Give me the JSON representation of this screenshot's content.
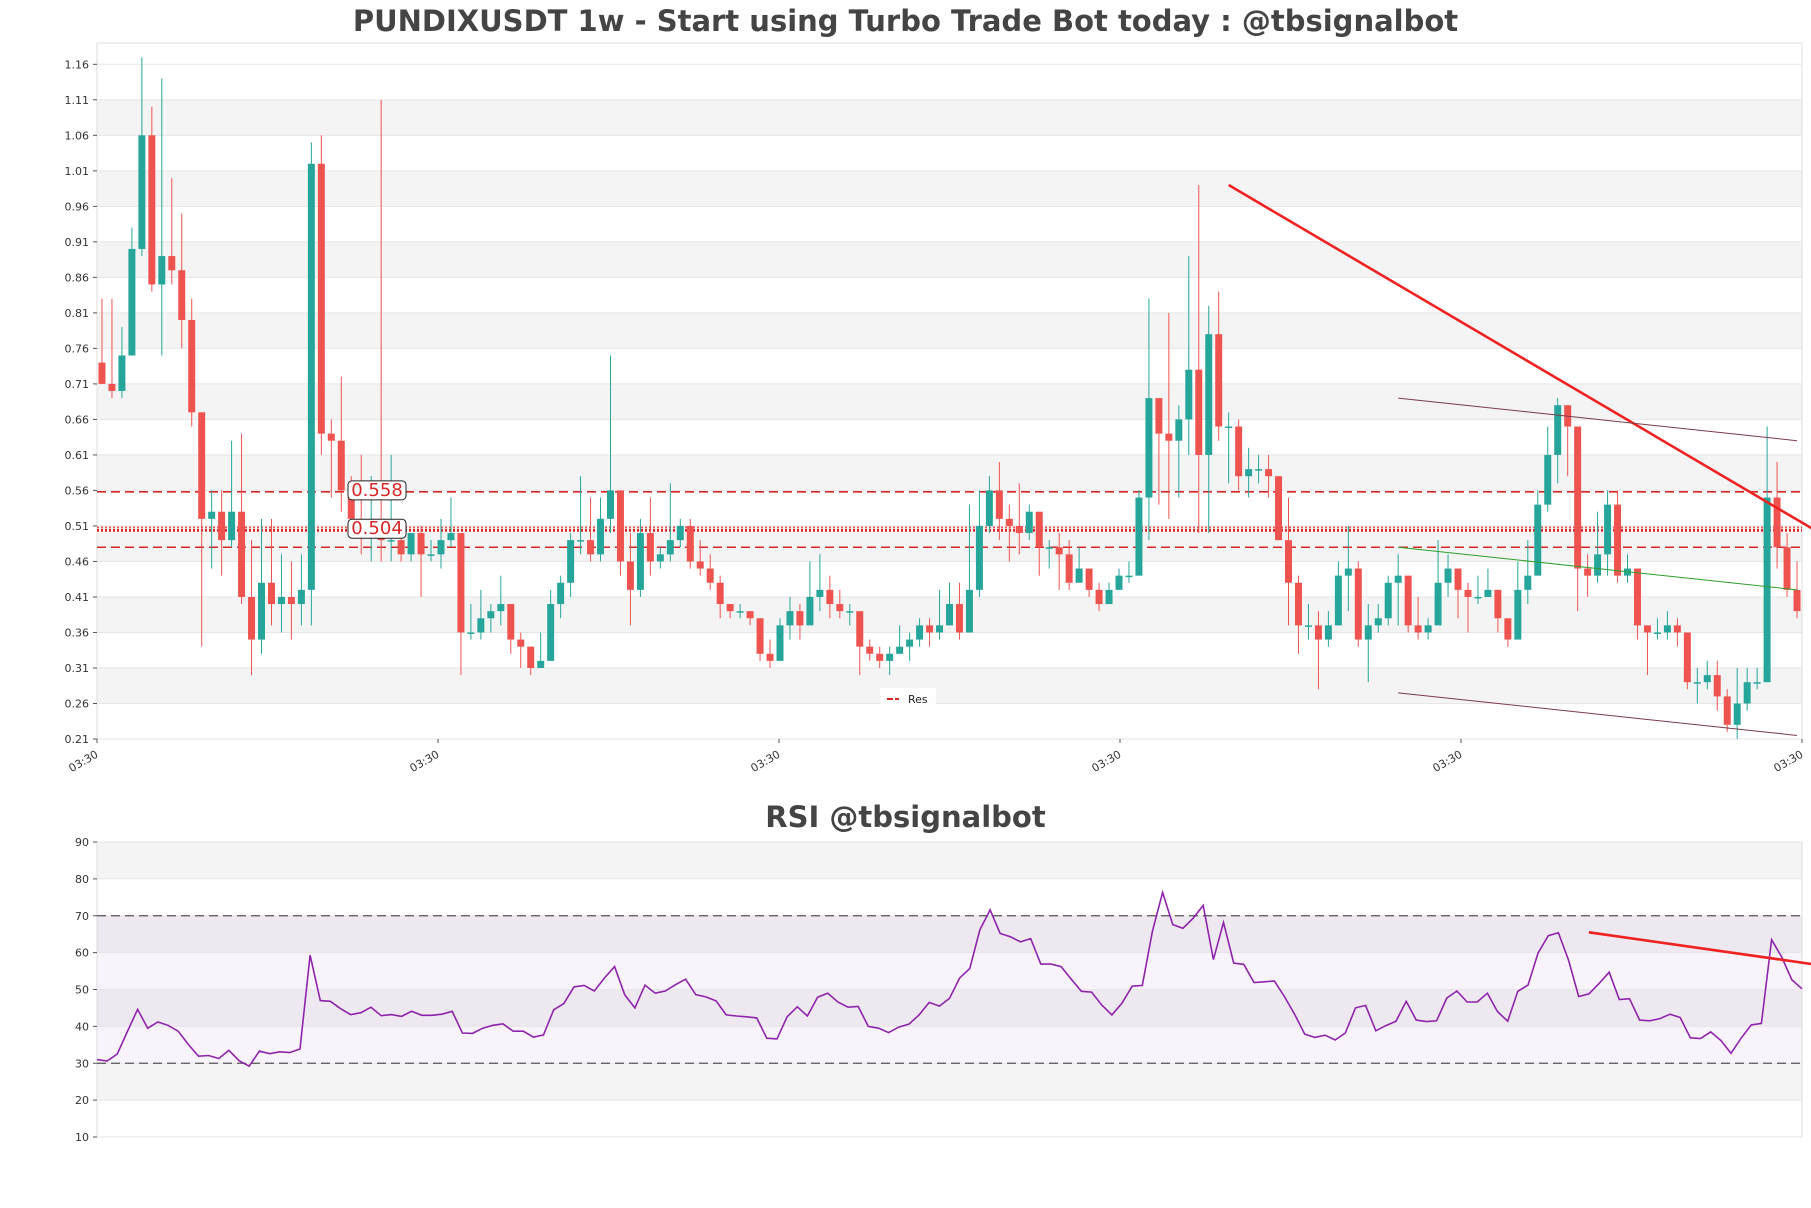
{
  "chart_data": [
    {
      "type": "candlestick",
      "title": "PUNDIXUSDT 1w - Start using Turbo Trade Bot today : @tbsignalbot",
      "ylim": [
        0.21,
        1.19
      ],
      "yticks": [
        0.21,
        0.26,
        0.31,
        0.36,
        0.41,
        0.46,
        0.51,
        0.56,
        0.61,
        0.66,
        0.71,
        0.76,
        0.81,
        0.86,
        0.91,
        0.96,
        1.01,
        1.06,
        1.11,
        1.16
      ],
      "xtick_labels": [
        "03:30",
        "03:30",
        "03:30",
        "03:30",
        "03:30",
        "03:30"
      ],
      "grid": "alternating horizontal bands",
      "legend": {
        "placement": "bottom-center",
        "entries": [
          "Res"
        ]
      },
      "colors": {
        "up": "#26a69a",
        "down": "#ef5350",
        "res": "#d62728",
        "trend": "#ee2222",
        "channel": "#7b3b4b",
        "mid": "#2ca02c"
      },
      "levels": [
        {
          "value": 0.558,
          "label": "0.558",
          "style": "dashed"
        },
        {
          "value": 0.504,
          "label": "0.504",
          "style": "dotted"
        },
        {
          "value": 0.48,
          "label": "",
          "style": "dashed"
        }
      ],
      "trendlines": [
        {
          "name": "down-trend",
          "from": [
            113,
            0.99
          ],
          "to": [
            173,
            0.494
          ]
        },
        {
          "name": "channel-upper",
          "from": [
            130,
            0.69
          ],
          "to": [
            170,
            0.63
          ]
        },
        {
          "name": "channel-middle",
          "from": [
            130,
            0.48
          ],
          "to": [
            170,
            0.42
          ]
        },
        {
          "name": "channel-lower",
          "from": [
            130,
            0.275
          ],
          "to": [
            170,
            0.215
          ]
        }
      ],
      "candles": [
        [
          0.74,
          0.71,
          0.83,
          0.71
        ],
        [
          0.71,
          0.7,
          0.83,
          0.69
        ],
        [
          0.7,
          0.75,
          0.79,
          0.69
        ],
        [
          0.75,
          0.9,
          0.93,
          0.75
        ],
        [
          0.9,
          1.06,
          1.17,
          0.89
        ],
        [
          1.06,
          0.85,
          1.1,
          0.84
        ],
        [
          0.85,
          0.89,
          1.14,
          0.75
        ],
        [
          0.89,
          0.87,
          1.0,
          0.85
        ],
        [
          0.87,
          0.8,
          0.95,
          0.76
        ],
        [
          0.8,
          0.67,
          0.83,
          0.65
        ],
        [
          0.67,
          0.52,
          0.67,
          0.34
        ],
        [
          0.52,
          0.53,
          0.56,
          0.45
        ],
        [
          0.53,
          0.49,
          0.56,
          0.44
        ],
        [
          0.49,
          0.53,
          0.63,
          0.48
        ],
        [
          0.53,
          0.41,
          0.64,
          0.4
        ],
        [
          0.41,
          0.35,
          0.49,
          0.3
        ],
        [
          0.35,
          0.43,
          0.52,
          0.33
        ],
        [
          0.43,
          0.4,
          0.52,
          0.37
        ],
        [
          0.4,
          0.41,
          0.47,
          0.36
        ],
        [
          0.41,
          0.4,
          0.46,
          0.35
        ],
        [
          0.4,
          0.42,
          0.47,
          0.37
        ],
        [
          0.42,
          1.02,
          1.05,
          0.37
        ],
        [
          1.02,
          0.64,
          1.06,
          0.61
        ],
        [
          0.64,
          0.63,
          0.66,
          0.55
        ],
        [
          0.63,
          0.56,
          0.72,
          0.53
        ],
        [
          0.56,
          0.52,
          0.58,
          0.5
        ],
        [
          0.52,
          0.51,
          0.61,
          0.47
        ],
        [
          0.51,
          0.52,
          0.58,
          0.46
        ],
        [
          0.52,
          0.49,
          1.11,
          0.46
        ],
        [
          0.49,
          0.49,
          0.61,
          0.46
        ],
        [
          0.49,
          0.47,
          0.5,
          0.46
        ],
        [
          0.47,
          0.5,
          0.5,
          0.46
        ],
        [
          0.5,
          0.47,
          0.51,
          0.41
        ],
        [
          0.47,
          0.47,
          0.49,
          0.46
        ],
        [
          0.47,
          0.49,
          0.52,
          0.45
        ],
        [
          0.49,
          0.5,
          0.55,
          0.48
        ],
        [
          0.5,
          0.36,
          0.5,
          0.3
        ],
        [
          0.36,
          0.36,
          0.4,
          0.35
        ],
        [
          0.36,
          0.38,
          0.42,
          0.35
        ],
        [
          0.38,
          0.39,
          0.4,
          0.36
        ],
        [
          0.39,
          0.4,
          0.44,
          0.37
        ],
        [
          0.4,
          0.35,
          0.4,
          0.33
        ],
        [
          0.35,
          0.34,
          0.36,
          0.31
        ],
        [
          0.34,
          0.31,
          0.34,
          0.3
        ],
        [
          0.31,
          0.32,
          0.36,
          0.31
        ],
        [
          0.32,
          0.4,
          0.42,
          0.33
        ],
        [
          0.4,
          0.43,
          0.44,
          0.38
        ],
        [
          0.43,
          0.49,
          0.5,
          0.41
        ],
        [
          0.49,
          0.49,
          0.58,
          0.47
        ],
        [
          0.49,
          0.47,
          0.55,
          0.46
        ],
        [
          0.47,
          0.52,
          0.55,
          0.46
        ],
        [
          0.52,
          0.56,
          0.75,
          0.5
        ],
        [
          0.56,
          0.46,
          0.56,
          0.44
        ],
        [
          0.46,
          0.42,
          0.5,
          0.37
        ],
        [
          0.42,
          0.5,
          0.52,
          0.41
        ],
        [
          0.5,
          0.46,
          0.55,
          0.44
        ],
        [
          0.46,
          0.47,
          0.48,
          0.45
        ],
        [
          0.47,
          0.49,
          0.57,
          0.46
        ],
        [
          0.49,
          0.51,
          0.52,
          0.48
        ],
        [
          0.51,
          0.46,
          0.52,
          0.45
        ],
        [
          0.46,
          0.45,
          0.49,
          0.44
        ],
        [
          0.45,
          0.43,
          0.47,
          0.42
        ],
        [
          0.43,
          0.4,
          0.44,
          0.38
        ],
        [
          0.4,
          0.39,
          0.4,
          0.38
        ],
        [
          0.39,
          0.39,
          0.4,
          0.38
        ],
        [
          0.39,
          0.38,
          0.39,
          0.37
        ],
        [
          0.38,
          0.33,
          0.38,
          0.32
        ],
        [
          0.33,
          0.32,
          0.35,
          0.31
        ],
        [
          0.32,
          0.37,
          0.38,
          0.32
        ],
        [
          0.37,
          0.39,
          0.41,
          0.35
        ],
        [
          0.39,
          0.37,
          0.4,
          0.35
        ],
        [
          0.37,
          0.41,
          0.46,
          0.37
        ],
        [
          0.41,
          0.42,
          0.47,
          0.39
        ],
        [
          0.42,
          0.4,
          0.44,
          0.38
        ],
        [
          0.4,
          0.39,
          0.42,
          0.38
        ],
        [
          0.39,
          0.39,
          0.4,
          0.37
        ],
        [
          0.39,
          0.34,
          0.39,
          0.3
        ],
        [
          0.34,
          0.33,
          0.35,
          0.32
        ],
        [
          0.33,
          0.32,
          0.34,
          0.31
        ],
        [
          0.32,
          0.33,
          0.34,
          0.3
        ],
        [
          0.33,
          0.34,
          0.37,
          0.33
        ],
        [
          0.34,
          0.35,
          0.36,
          0.32
        ],
        [
          0.35,
          0.37,
          0.38,
          0.34
        ],
        [
          0.37,
          0.36,
          0.38,
          0.34
        ],
        [
          0.36,
          0.37,
          0.42,
          0.35
        ],
        [
          0.37,
          0.4,
          0.43,
          0.37
        ],
        [
          0.4,
          0.36,
          0.43,
          0.35
        ],
        [
          0.36,
          0.42,
          0.54,
          0.4
        ],
        [
          0.42,
          0.51,
          0.56,
          0.41
        ],
        [
          0.51,
          0.56,
          0.58,
          0.5
        ],
        [
          0.56,
          0.52,
          0.6,
          0.49
        ],
        [
          0.52,
          0.51,
          0.54,
          0.46
        ],
        [
          0.51,
          0.5,
          0.57,
          0.47
        ],
        [
          0.5,
          0.53,
          0.54,
          0.49
        ],
        [
          0.53,
          0.48,
          0.53,
          0.44
        ],
        [
          0.48,
          0.48,
          0.49,
          0.45
        ],
        [
          0.48,
          0.47,
          0.5,
          0.42
        ],
        [
          0.47,
          0.43,
          0.49,
          0.42
        ],
        [
          0.43,
          0.45,
          0.48,
          0.44
        ],
        [
          0.45,
          0.42,
          0.44,
          0.41
        ],
        [
          0.42,
          0.4,
          0.43,
          0.39
        ],
        [
          0.4,
          0.42,
          0.43,
          0.4
        ],
        [
          0.42,
          0.44,
          0.45,
          0.42
        ],
        [
          0.44,
          0.44,
          0.46,
          0.43
        ],
        [
          0.44,
          0.55,
          0.56,
          0.45
        ],
        [
          0.55,
          0.69,
          0.83,
          0.49
        ],
        [
          0.69,
          0.64,
          0.69,
          0.54
        ],
        [
          0.64,
          0.63,
          0.81,
          0.52
        ],
        [
          0.63,
          0.66,
          0.68,
          0.55
        ],
        [
          0.66,
          0.73,
          0.89,
          0.61
        ],
        [
          0.73,
          0.61,
          0.99,
          0.5
        ],
        [
          0.61,
          0.78,
          0.82,
          0.5
        ],
        [
          0.78,
          0.65,
          0.84,
          0.63
        ],
        [
          0.65,
          0.65,
          0.67,
          0.57
        ],
        [
          0.65,
          0.58,
          0.66,
          0.56
        ],
        [
          0.58,
          0.59,
          0.62,
          0.55
        ],
        [
          0.59,
          0.59,
          0.61,
          0.57
        ],
        [
          0.59,
          0.58,
          0.61,
          0.55
        ],
        [
          0.58,
          0.49,
          0.58,
          0.49
        ],
        [
          0.49,
          0.43,
          0.55,
          0.37
        ],
        [
          0.43,
          0.37,
          0.44,
          0.33
        ],
        [
          0.37,
          0.37,
          0.4,
          0.35
        ],
        [
          0.37,
          0.35,
          0.39,
          0.28
        ],
        [
          0.35,
          0.37,
          0.39,
          0.34
        ],
        [
          0.37,
          0.44,
          0.46,
          0.37
        ],
        [
          0.44,
          0.45,
          0.51,
          0.39
        ],
        [
          0.45,
          0.35,
          0.46,
          0.34
        ],
        [
          0.35,
          0.37,
          0.4,
          0.29
        ],
        [
          0.37,
          0.38,
          0.4,
          0.36
        ],
        [
          0.38,
          0.43,
          0.44,
          0.37
        ],
        [
          0.43,
          0.44,
          0.47,
          0.37
        ],
        [
          0.44,
          0.37,
          0.44,
          0.36
        ],
        [
          0.37,
          0.36,
          0.41,
          0.35
        ],
        [
          0.36,
          0.37,
          0.38,
          0.35
        ],
        [
          0.37,
          0.43,
          0.49,
          0.37
        ],
        [
          0.43,
          0.45,
          0.47,
          0.41
        ],
        [
          0.45,
          0.42,
          0.45,
          0.38
        ],
        [
          0.42,
          0.41,
          0.43,
          0.36
        ],
        [
          0.41,
          0.41,
          0.44,
          0.4
        ],
        [
          0.41,
          0.42,
          0.45,
          0.41
        ],
        [
          0.42,
          0.38,
          0.42,
          0.36
        ],
        [
          0.38,
          0.35,
          0.38,
          0.34
        ],
        [
          0.35,
          0.42,
          0.46,
          0.35
        ],
        [
          0.42,
          0.44,
          0.49,
          0.4
        ],
        [
          0.44,
          0.54,
          0.56,
          0.49
        ],
        [
          0.54,
          0.61,
          0.65,
          0.53
        ],
        [
          0.61,
          0.68,
          0.69,
          0.57
        ],
        [
          0.68,
          0.65,
          0.67,
          0.58
        ],
        [
          0.65,
          0.45,
          0.65,
          0.39
        ],
        [
          0.45,
          0.44,
          0.47,
          0.41
        ],
        [
          0.44,
          0.47,
          0.53,
          0.43
        ],
        [
          0.47,
          0.54,
          0.56,
          0.44
        ],
        [
          0.54,
          0.44,
          0.56,
          0.43
        ],
        [
          0.44,
          0.45,
          0.47,
          0.43
        ],
        [
          0.45,
          0.37,
          0.45,
          0.35
        ],
        [
          0.37,
          0.36,
          0.37,
          0.3
        ],
        [
          0.36,
          0.36,
          0.38,
          0.35
        ],
        [
          0.36,
          0.37,
          0.39,
          0.35
        ],
        [
          0.37,
          0.36,
          0.38,
          0.34
        ],
        [
          0.36,
          0.29,
          0.36,
          0.28
        ],
        [
          0.29,
          0.29,
          0.31,
          0.26
        ],
        [
          0.29,
          0.3,
          0.32,
          0.28
        ],
        [
          0.3,
          0.27,
          0.32,
          0.25
        ],
        [
          0.27,
          0.23,
          0.28,
          0.22
        ],
        [
          0.23,
          0.26,
          0.31,
          0.21
        ],
        [
          0.26,
          0.29,
          0.31,
          0.25
        ],
        [
          0.29,
          0.29,
          0.31,
          0.28
        ],
        [
          0.29,
          0.55,
          0.65,
          0.29
        ],
        [
          0.55,
          0.48,
          0.6,
          0.45
        ],
        [
          0.48,
          0.42,
          0.5,
          0.41
        ],
        [
          0.42,
          0.39,
          0.46,
          0.38
        ]
      ]
    },
    {
      "type": "line",
      "title": "RSI @tbsignalbot",
      "ylim": [
        10,
        90
      ],
      "yticks": [
        10,
        20,
        30,
        40,
        50,
        60,
        70,
        80,
        90
      ],
      "levels": [
        70,
        30
      ],
      "band": [
        30,
        70
      ],
      "line_color": "#8e24aa",
      "trendline": {
        "from": [
          147,
          65.5
        ],
        "to": [
          170,
          56.5
        ],
        "color": "#ee2222"
      },
      "values": [
        31,
        30.6,
        32.5,
        38.6,
        44.6,
        39.5,
        41.2,
        40.3,
        38.7,
        35.1,
        31.9,
        32.1,
        31.3,
        33.5,
        30.7,
        29.2,
        33.3,
        32.6,
        33.1,
        32.9,
        33.9,
        59.3,
        47,
        46.8,
        44.8,
        43.2,
        43.7,
        45.2,
        42.9,
        43.2,
        42.7,
        44.1,
        43,
        43,
        43.3,
        44.1,
        38.2,
        38.1,
        39.5,
        40.3,
        40.7,
        38.7,
        38.7,
        37.1,
        37.7,
        44.5,
        46.2,
        50.7,
        51.1,
        49.6,
        53.1,
        56.2,
        48.6,
        45,
        51.2,
        49,
        49.6,
        51.3,
        52.8,
        48.6,
        48,
        46.9,
        43.1,
        42.8,
        42.6,
        42.3,
        36.8,
        36.6,
        42.6,
        45.3,
        42.8,
        47.9,
        49,
        46.6,
        45.2,
        45.4,
        40,
        39.5,
        38.3,
        39.8,
        40.6,
        43.1,
        46.5,
        45.5,
        47.6,
        53.1,
        55.7,
        66.2,
        71.6,
        65.2,
        64.3,
        62.9,
        63.8,
        56.9,
        56.9,
        56.2,
        52.8,
        49.5,
        49.3,
        45.8,
        43.1,
        46.3,
        50.9,
        51.1,
        65.9,
        76.3,
        67.6,
        66.6,
        69.3,
        72.8,
        58.1,
        68.2,
        57.2,
        56.8,
        51.9,
        52.1,
        52.3,
        48.1,
        43.3,
        37.9,
        37,
        37.6,
        36.3,
        38.2,
        45,
        45.7,
        38.8,
        40.2,
        41.4,
        46.8,
        41.7,
        41.3,
        41.5,
        47.7,
        49.6,
        46.6,
        46.6,
        49,
        44,
        41.4,
        49.5,
        51.2,
        59.9,
        64.6,
        65.4,
        57.9,
        48.1,
        48.8,
        51.6,
        54.7,
        47.3,
        47.5,
        41.7,
        41.5,
        42.1,
        43.3,
        42.4,
        36.9,
        36.7,
        38.5,
        36.2,
        32.7,
        36.8,
        40.4,
        40.8,
        63.5,
        58.8,
        52.6,
        50.2
      ]
    }
  ]
}
